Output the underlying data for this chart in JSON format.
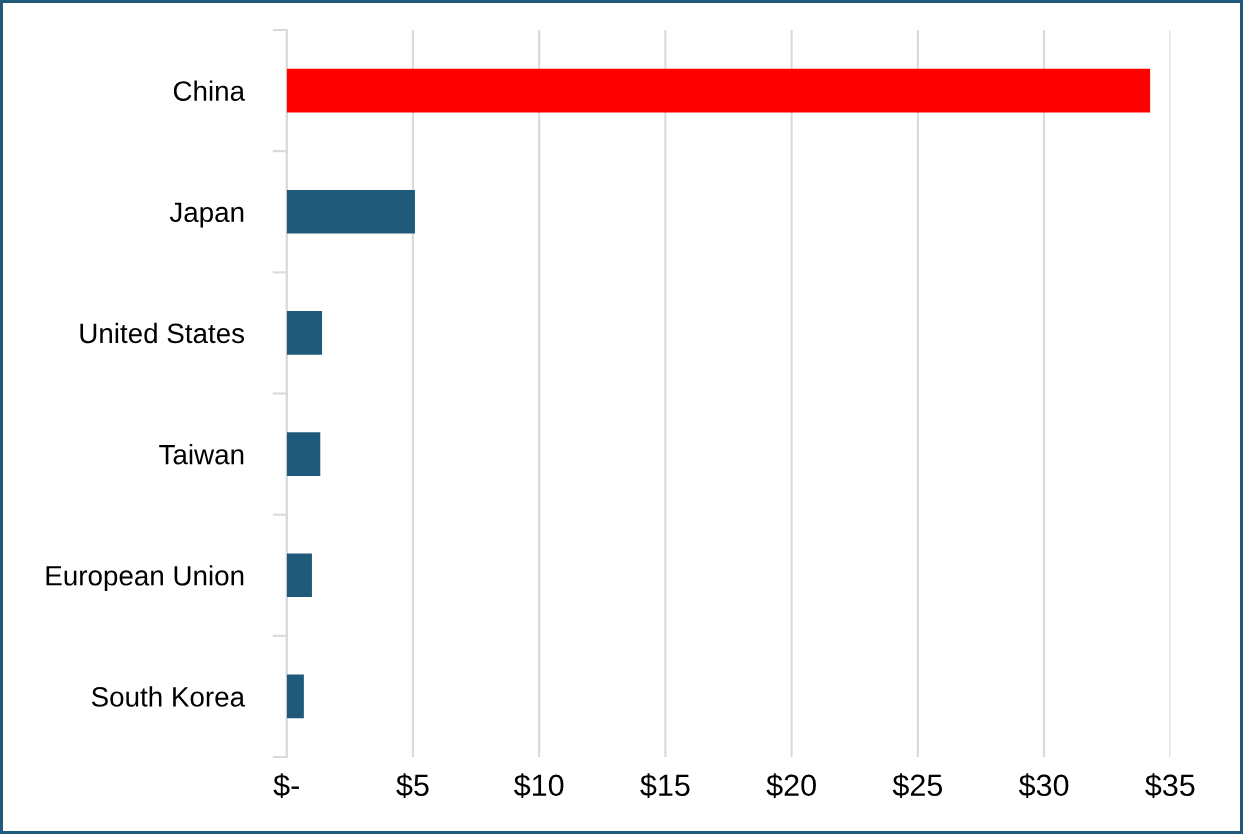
{
  "chart_data": {
    "type": "bar",
    "orientation": "horizontal",
    "categories": [
      "China",
      "Japan",
      "United States",
      "Taiwan",
      "European Union",
      "South Korea"
    ],
    "values": [
      34.2,
      5.08,
      1.4,
      1.33,
      1.0,
      0.68
    ],
    "colors": [
      "#ff0000",
      "#1f5a7a",
      "#1f5a7a",
      "#1f5a7a",
      "#1f5a7a",
      "#1f5a7a"
    ],
    "xlim": [
      0,
      35
    ],
    "xticks": [
      {
        "value": 0,
        "label": "$-"
      },
      {
        "value": 5,
        "label": "$5"
      },
      {
        "value": 10,
        "label": "$10"
      },
      {
        "value": 15,
        "label": "$15"
      },
      {
        "value": 20,
        "label": "$20"
      },
      {
        "value": 25,
        "label": "$25"
      },
      {
        "value": 30,
        "label": "$30"
      },
      {
        "value": 35,
        "label": "$35"
      }
    ],
    "grid": "x"
  }
}
